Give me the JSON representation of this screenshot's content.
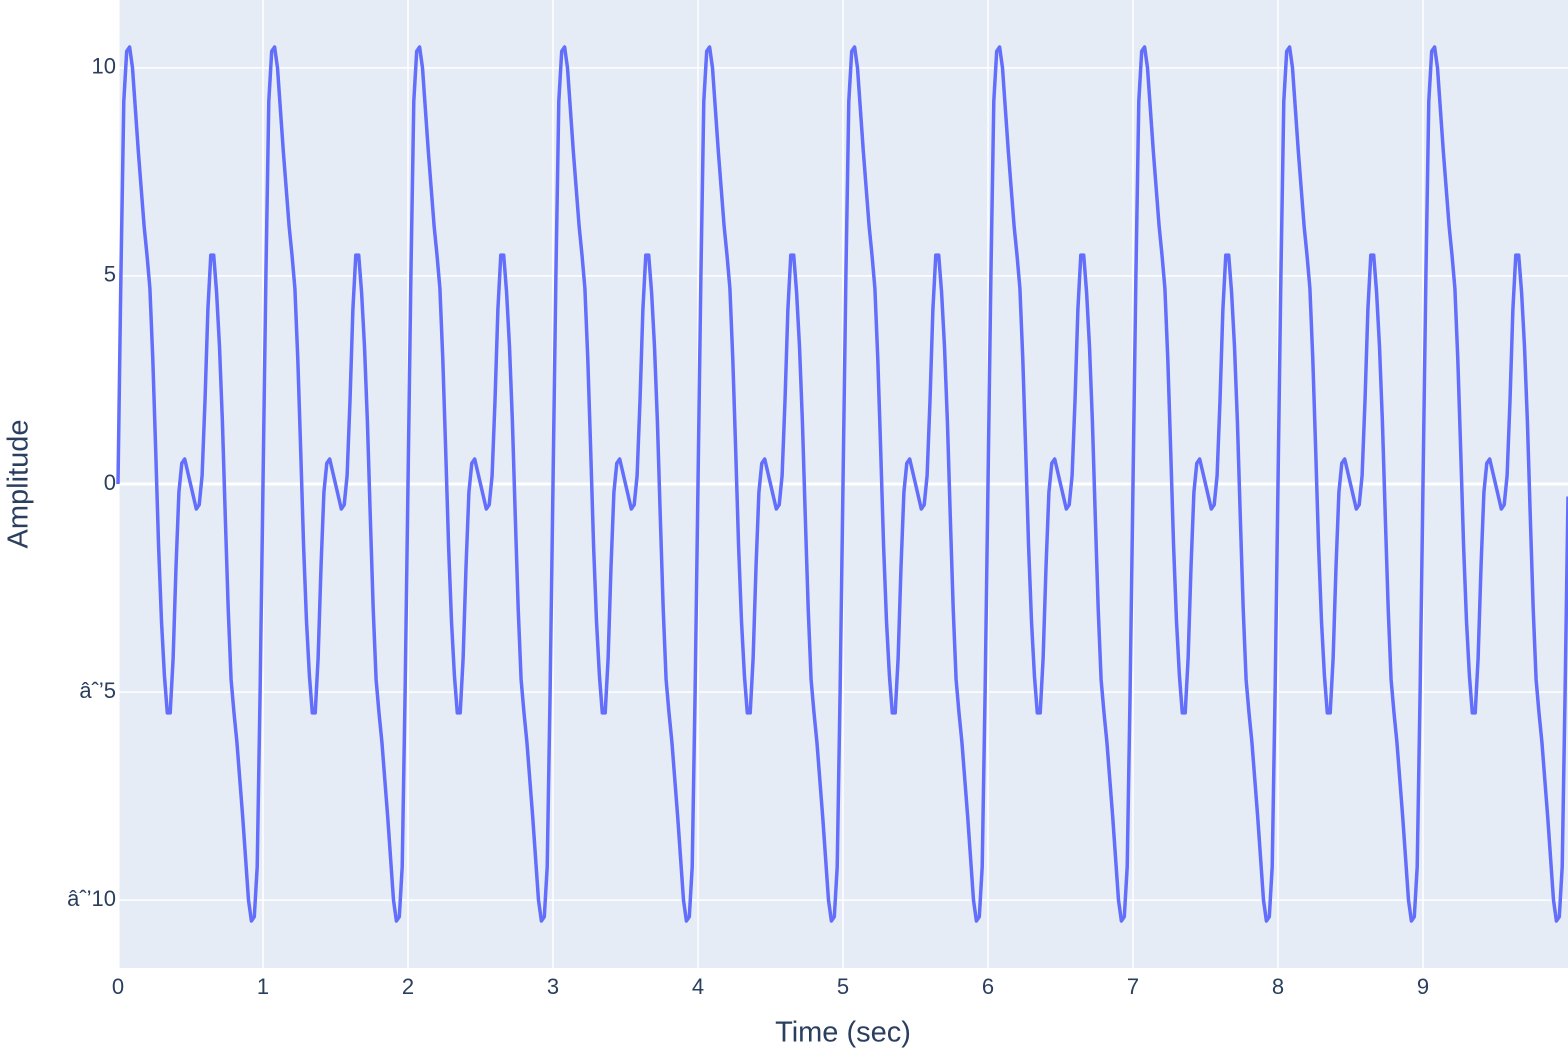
{
  "chart_data": {
    "type": "line",
    "x_label": "Time (sec)",
    "y_label": "Amplitude",
    "xlim": [
      0,
      10
    ],
    "ylim": [
      -11.63,
      11.63
    ],
    "xticks": [
      0,
      1,
      2,
      3,
      4,
      5,
      6,
      7,
      8,
      9
    ],
    "yticks": [
      {
        "value": -10,
        "label": "âˆ’10"
      },
      {
        "value": -5,
        "label": "âˆ’5"
      },
      0,
      5,
      10
    ],
    "grid": true,
    "x": [
      0,
      0.02,
      0.04,
      0.06,
      0.08,
      0.1,
      0.12,
      0.14,
      0.16,
      0.18,
      0.2,
      0.22,
      0.24,
      0.26,
      0.28,
      0.3,
      0.32,
      0.34,
      0.36,
      0.38,
      0.4,
      0.42,
      0.44,
      0.46,
      0.48,
      0.5,
      0.52,
      0.54,
      0.56,
      0.58,
      0.6,
      0.62,
      0.64,
      0.66,
      0.68,
      0.7,
      0.72,
      0.74,
      0.76,
      0.78,
      0.8,
      0.82,
      0.84,
      0.86,
      0.88,
      0.9,
      0.92,
      0.94,
      0.96,
      0.98,
      1,
      1.02,
      1.04,
      1.06,
      1.08,
      1.1,
      1.12,
      1.14,
      1.16,
      1.18,
      1.2,
      1.22,
      1.24,
      1.26,
      1.28,
      1.3,
      1.32,
      1.34,
      1.36,
      1.38,
      1.4,
      1.42,
      1.44,
      1.46,
      1.48,
      1.5,
      1.52,
      1.54,
      1.56,
      1.58,
      1.6,
      1.62,
      1.64,
      1.66,
      1.68,
      1.7,
      1.72,
      1.74,
      1.76,
      1.78,
      1.8,
      1.82,
      1.84,
      1.86,
      1.88,
      1.9,
      1.92,
      1.94,
      1.96,
      1.98,
      2,
      2.02,
      2.04,
      2.06,
      2.08,
      2.1,
      2.12,
      2.14,
      2.16,
      2.18,
      2.2,
      2.22,
      2.24,
      2.26,
      2.28,
      2.3,
      2.32,
      2.34,
      2.36,
      2.38,
      2.4,
      2.42,
      2.44,
      2.46,
      2.48,
      2.5,
      2.52,
      2.54,
      2.56,
      2.58,
      2.6,
      2.62,
      2.64,
      2.66,
      2.68,
      2.7,
      2.72,
      2.74,
      2.76,
      2.78,
      2.8,
      2.82,
      2.84,
      2.86,
      2.88,
      2.9,
      2.92,
      2.94,
      2.96,
      2.98,
      3,
      3.02,
      3.04,
      3.06,
      3.08,
      3.1,
      3.12,
      3.14,
      3.16,
      3.18,
      3.2,
      3.22,
      3.24,
      3.26,
      3.28,
      3.3,
      3.32,
      3.34,
      3.36,
      3.38,
      3.4,
      3.42,
      3.44,
      3.46,
      3.48,
      3.5,
      3.52,
      3.54,
      3.56,
      3.58,
      3.6,
      3.62,
      3.64,
      3.66,
      3.68,
      3.7,
      3.72,
      3.74,
      3.76,
      3.78,
      3.8,
      3.82,
      3.84,
      3.86,
      3.88,
      3.9,
      3.92,
      3.94,
      3.96,
      3.98,
      4,
      4.02,
      4.04,
      4.06,
      4.08,
      4.1,
      4.12,
      4.14,
      4.16,
      4.18,
      4.2,
      4.22,
      4.24,
      4.26,
      4.28,
      4.3,
      4.32,
      4.34,
      4.36,
      4.38,
      4.4,
      4.42,
      4.44,
      4.46,
      4.48,
      4.5,
      4.52,
      4.54,
      4.56,
      4.58,
      4.6,
      4.62,
      4.64,
      4.66,
      4.68,
      4.7,
      4.72,
      4.74,
      4.76,
      4.78,
      4.8,
      4.82,
      4.84,
      4.86,
      4.88,
      4.9,
      4.92,
      4.94,
      4.96,
      4.98,
      5,
      5.02,
      5.04,
      5.06,
      5.08,
      5.1,
      5.12,
      5.14,
      5.16,
      5.18,
      5.2,
      5.22,
      5.24,
      5.26,
      5.28,
      5.3,
      5.32,
      5.34,
      5.36,
      5.38,
      5.4,
      5.42,
      5.44,
      5.46,
      5.48,
      5.5,
      5.52,
      5.54,
      5.56,
      5.58,
      5.6,
      5.62,
      5.64,
      5.66,
      5.68,
      5.7,
      5.72,
      5.74,
      5.76,
      5.78,
      5.8,
      5.82,
      5.84,
      5.86,
      5.88,
      5.9,
      5.92,
      5.94,
      5.96,
      5.98,
      6,
      6.02,
      6.04,
      6.06,
      6.08,
      6.1,
      6.12,
      6.14,
      6.16,
      6.18,
      6.2,
      6.22,
      6.24,
      6.26,
      6.28,
      6.3,
      6.32,
      6.34,
      6.36,
      6.38,
      6.4,
      6.42,
      6.44,
      6.46,
      6.48,
      6.5,
      6.52,
      6.54,
      6.56,
      6.58,
      6.6,
      6.62,
      6.64,
      6.66,
      6.68,
      6.7,
      6.72,
      6.74,
      6.76,
      6.78,
      6.8,
      6.82,
      6.84,
      6.86,
      6.88,
      6.9,
      6.92,
      6.94,
      6.96,
      6.98,
      7,
      7.02,
      7.04,
      7.06,
      7.08,
      7.1,
      7.12,
      7.14,
      7.16,
      7.18,
      7.2,
      7.22,
      7.24,
      7.26,
      7.28,
      7.3,
      7.32,
      7.34,
      7.36,
      7.38,
      7.4,
      7.42,
      7.44,
      7.46,
      7.48,
      7.5,
      7.52,
      7.54,
      7.56,
      7.58,
      7.6,
      7.62,
      7.64,
      7.66,
      7.68,
      7.7,
      7.72,
      7.74,
      7.76,
      7.78,
      7.8,
      7.82,
      7.84,
      7.86,
      7.88,
      7.9,
      7.92,
      7.94,
      7.96,
      7.98,
      8,
      8.02,
      8.04,
      8.06,
      8.08,
      8.1,
      8.12,
      8.14,
      8.16,
      8.18,
      8.2,
      8.22,
      8.24,
      8.26,
      8.28,
      8.3,
      8.32,
      8.34,
      8.36,
      8.38,
      8.4,
      8.42,
      8.44,
      8.46,
      8.48,
      8.5,
      8.52,
      8.54,
      8.56,
      8.58,
      8.6,
      8.62,
      8.64,
      8.66,
      8.68,
      8.7,
      8.72,
      8.74,
      8.76,
      8.78,
      8.8,
      8.82,
      8.84,
      8.86,
      8.88,
      8.9,
      8.92,
      8.94,
      8.96,
      8.98,
      9,
      9.02,
      9.04,
      9.06,
      9.08,
      9.1,
      9.12,
      9.14,
      9.16,
      9.18,
      9.2,
      9.22,
      9.24,
      9.26,
      9.28,
      9.3,
      9.32,
      9.34,
      9.36,
      9.38,
      9.4,
      9.42,
      9.44,
      9.46,
      9.48,
      9.5,
      9.52,
      9.54,
      9.56,
      9.58,
      9.6,
      9.62,
      9.64,
      9.66,
      9.68,
      9.7,
      9.72,
      9.74,
      9.76,
      9.78,
      9.8,
      9.82,
      9.84,
      9.86,
      9.88,
      9.9,
      9.92,
      9.94,
      9.96,
      9.98,
      10
    ],
    "series": [
      {
        "color": "#636efa",
        "values": [
          0,
          5,
          9.2,
          10.4,
          10.5,
          10,
          9,
          8,
          7.1,
          6.2,
          5.5,
          4.7,
          3,
          0.8,
          -1.5,
          -3.3,
          -4.6,
          -5.5,
          -5.5,
          -4.2,
          -2,
          -0.2,
          0.5,
          0.6,
          0.3,
          0,
          -0.3,
          -0.6,
          -0.5,
          0.2,
          2,
          4.2,
          5.5,
          5.5,
          4.6,
          3.3,
          1.5,
          -0.8,
          -3,
          -4.7,
          -5.5,
          -6.2,
          -7.1,
          -8,
          -9,
          -10,
          -10.5,
          -10.4,
          -9.2,
          -5,
          0,
          5,
          9.2,
          10.4,
          10.5,
          10,
          9,
          8,
          7.1,
          6.2,
          5.5,
          4.7,
          3,
          0.8,
          -1.5,
          -3.3,
          -4.6,
          -5.5,
          -5.5,
          -4.2,
          -2,
          -0.2,
          0.5,
          0.6,
          0.3,
          0,
          -0.3,
          -0.6,
          -0.5,
          0.2,
          2,
          4.2,
          5.5,
          5.5,
          4.6,
          3.3,
          1.5,
          -0.8,
          -3,
          -4.7,
          -5.5,
          -6.2,
          -7.1,
          -8,
          -9,
          -10,
          -10.5,
          -10.4,
          -9.2,
          -5,
          0,
          5,
          9.2,
          10.4,
          10.5,
          10,
          9,
          8,
          7.1,
          6.2,
          5.5,
          4.7,
          3,
          0.8,
          -1.5,
          -3.3,
          -4.6,
          -5.5,
          -5.5,
          -4.2,
          -2,
          -0.2,
          0.5,
          0.6,
          0.3,
          0,
          -0.3,
          -0.6,
          -0.5,
          0.2,
          2,
          4.2,
          5.5,
          5.5,
          4.6,
          3.3,
          1.5,
          -0.8,
          -3,
          -4.7,
          -5.5,
          -6.2,
          -7.1,
          -8,
          -9,
          -10,
          -10.5,
          -10.4,
          -9.2,
          -5,
          0,
          5,
          9.2,
          10.4,
          10.5,
          10,
          9,
          8,
          7.1,
          6.2,
          5.5,
          4.7,
          3,
          0.8,
          -1.5,
          -3.3,
          -4.6,
          -5.5,
          -5.5,
          -4.2,
          -2,
          -0.2,
          0.5,
          0.6,
          0.3,
          0,
          -0.3,
          -0.6,
          -0.5,
          0.2,
          2,
          4.2,
          5.5,
          5.5,
          4.6,
          3.3,
          1.5,
          -0.8,
          -3,
          -4.7,
          -5.5,
          -6.2,
          -7.1,
          -8,
          -9,
          -10,
          -10.5,
          -10.4,
          -9.2,
          -5,
          0,
          5,
          9.2,
          10.4,
          10.5,
          10,
          9,
          8,
          7.1,
          6.2,
          5.5,
          4.7,
          3,
          0.8,
          -1.5,
          -3.3,
          -4.6,
          -5.5,
          -5.5,
          -4.2,
          -2,
          -0.2,
          0.5,
          0.6,
          0.3,
          0,
          -0.3,
          -0.6,
          -0.5,
          0.2,
          2,
          4.2,
          5.5,
          5.5,
          4.6,
          3.3,
          1.5,
          -0.8,
          -3,
          -4.7,
          -5.5,
          -6.2,
          -7.1,
          -8,
          -9,
          -10,
          -10.5,
          -10.4,
          -9.2,
          -5,
          0,
          5,
          9.2,
          10.4,
          10.5,
          10,
          9,
          8,
          7.1,
          6.2,
          5.5,
          4.7,
          3,
          0.8,
          -1.5,
          -3.3,
          -4.6,
          -5.5,
          -5.5,
          -4.2,
          -2,
          -0.2,
          0.5,
          0.6,
          0.3,
          0,
          -0.3,
          -0.6,
          -0.5,
          0.2,
          2,
          4.2,
          5.5,
          5.5,
          4.6,
          3.3,
          1.5,
          -0.8,
          -3,
          -4.7,
          -5.5,
          -6.2,
          -7.1,
          -8,
          -9,
          -10,
          -10.5,
          -10.4,
          -9.2,
          -5,
          0,
          5,
          9.2,
          10.4,
          10.5,
          10,
          9,
          8,
          7.1,
          6.2,
          5.5,
          4.7,
          3,
          0.8,
          -1.5,
          -3.3,
          -4.6,
          -5.5,
          -5.5,
          -4.2,
          -2,
          -0.2,
          0.5,
          0.6,
          0.3,
          0,
          -0.3,
          -0.6,
          -0.5,
          0.2,
          2,
          4.2,
          5.5,
          5.5,
          4.6,
          3.3,
          1.5,
          -0.8,
          -3,
          -4.7,
          -5.5,
          -6.2,
          -7.1,
          -8,
          -9,
          -10,
          -10.5,
          -10.4,
          -9.2,
          -5,
          0,
          5,
          9.2,
          10.4,
          10.5,
          10,
          9,
          8,
          7.1,
          6.2,
          5.5,
          4.7,
          3,
          0.8,
          -1.5,
          -3.3,
          -4.6,
          -5.5,
          -5.5,
          -4.2,
          -2,
          -0.2,
          0.5,
          0.6,
          0.3,
          0,
          -0.3,
          -0.6,
          -0.5,
          0.2,
          2,
          4.2,
          5.5,
          5.5,
          4.6,
          3.3,
          1.5,
          -0.8,
          -3,
          -4.7,
          -5.5,
          -6.2,
          -7.1,
          -8,
          -9,
          -10,
          -10.5,
          -10.4,
          -9.2,
          -5,
          0,
          5,
          9.2,
          10.4,
          10.5,
          10,
          9,
          8,
          7.1,
          6.2,
          5.5,
          4.7,
          3,
          0.8,
          -1.5,
          -3.3,
          -4.6,
          -5.5,
          -5.5,
          -4.2,
          -2,
          -0.2,
          0.5,
          0.6,
          0.3,
          0,
          -0.3,
          -0.6,
          -0.5,
          0.2,
          2,
          4.2,
          5.5,
          5.5,
          4.6,
          3.3,
          1.5,
          -0.8,
          -3,
          -4.7,
          -5.5,
          -6.2,
          -7.1,
          -8,
          -9,
          -10,
          -10.5,
          -10.4,
          -9.2,
          -5,
          0,
          5,
          9.2,
          10.4,
          10.5,
          10,
          9,
          8,
          7.1,
          6.2,
          5.5,
          4.7,
          3,
          0.8,
          -1.5,
          -3.3,
          -4.6,
          -5.5,
          -5.5,
          -4.2,
          -2,
          -0.2,
          0.5,
          0.6,
          0.3,
          0,
          -0.3,
          -0.6,
          -0.5,
          0.2,
          2,
          4.2,
          5.5,
          5.5,
          4.6,
          3.3,
          1.5,
          -0.8,
          -3,
          -4.7,
          -5.5,
          -6.2,
          -7.1,
          -8,
          -9,
          -10,
          -10.5,
          -10.4,
          -9.2,
          -5,
          -0.3
        ]
      }
    ]
  }
}
